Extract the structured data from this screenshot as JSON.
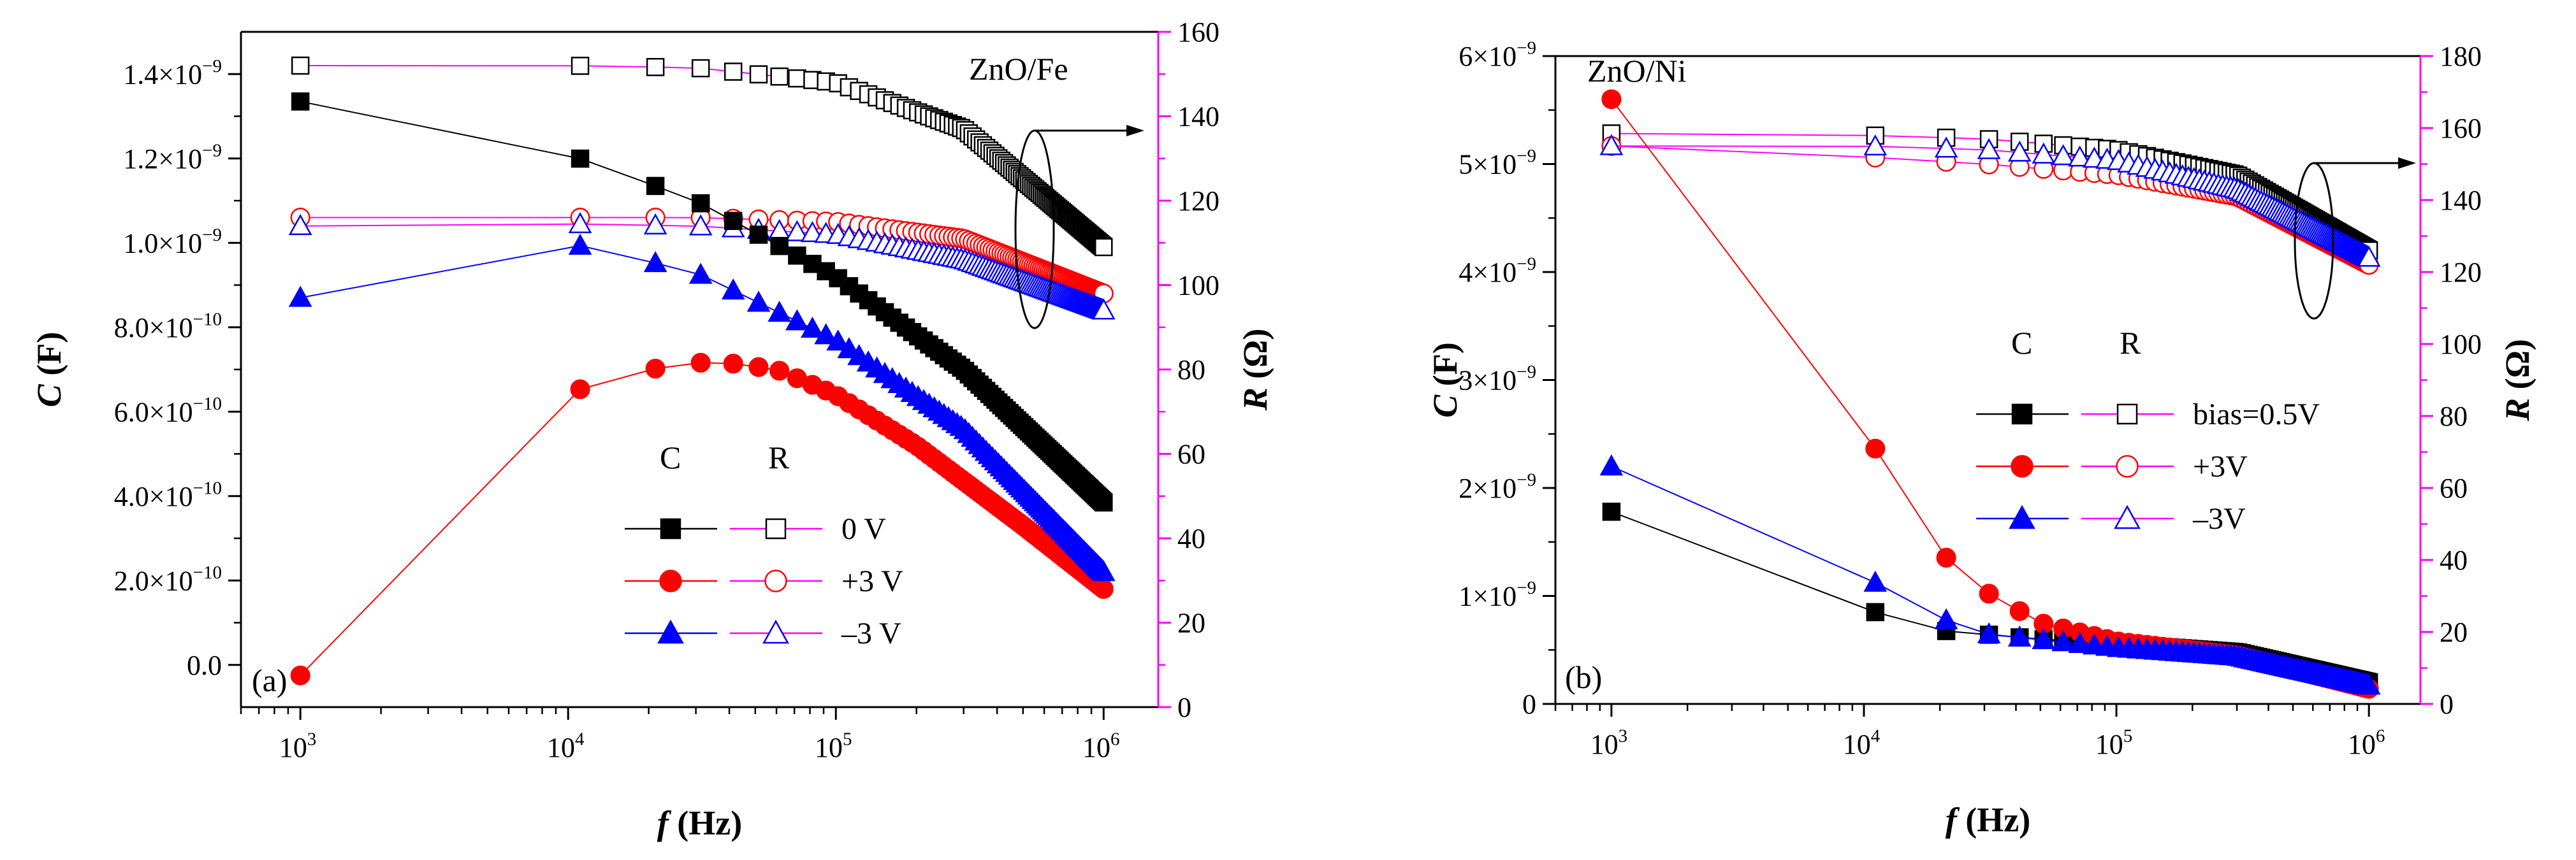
{
  "chart_data": [
    {
      "type": "scatter",
      "panel_label": "(a)",
      "sample_label": "ZnO/Fe",
      "x_scale": "log",
      "xlim": [
        600,
        1600000
      ],
      "xlabel": {
        "italic": "f",
        "rest": " (Hz)"
      },
      "x_ticks": [
        {
          "value": 1000,
          "base": "10",
          "exp": "3"
        },
        {
          "value": 10000,
          "base": "10",
          "exp": "4"
        },
        {
          "value": 100000,
          "base": "10",
          "exp": "5"
        },
        {
          "value": 1000000,
          "base": "10",
          "exp": "6"
        }
      ],
      "ylim_left": [
        -1e-10,
        1.5e-09
      ],
      "ylabel_left": {
        "italic": "C",
        "rest": " (F)"
      },
      "y_ticks_left": [
        {
          "value": 0,
          "label": "0.0"
        },
        {
          "value": 2e-10,
          "label": "2.0×10",
          "exp": "−10"
        },
        {
          "value": 4e-10,
          "label": "4.0×10",
          "exp": "−10"
        },
        {
          "value": 6e-10,
          "label": "6.0×10",
          "exp": "−10"
        },
        {
          "value": 8e-10,
          "label": "8.0×10",
          "exp": "−10"
        },
        {
          "value": 1e-09,
          "label": "1.0×10",
          "exp": "−9"
        },
        {
          "value": 1.2e-09,
          "label": "1.2×10",
          "exp": "−9"
        },
        {
          "value": 1.4e-09,
          "label": "1.4×10",
          "exp": "−9"
        }
      ],
      "ylim_right": [
        0,
        160
      ],
      "ylabel_right": {
        "italic": "R",
        "rest": " (Ω)"
      },
      "y_ticks_right": [
        0,
        20,
        40,
        60,
        80,
        100,
        120,
        140,
        160
      ],
      "legend": {
        "position": "lower-right",
        "header_c": "C",
        "header_r": "R",
        "entries": [
          "0 V",
          "+3 V",
          "–3 V"
        ]
      },
      "arrow_direction": "right",
      "c_series": [
        {
          "color": "#000000",
          "marker": "square",
          "fstart": 1000,
          "fend": 1000000,
          "n": 100,
          "pts": [
            [
              1000,
              1.335e-09
            ],
            [
              3000,
              1.29e-09
            ],
            [
              5000,
              1.26e-09
            ],
            [
              10000,
              1.21e-09
            ],
            [
              30000,
              1.1e-09
            ],
            [
              100000,
              9.2e-10
            ],
            [
              300000,
              7e-10
            ],
            [
              1000000,
              3.85e-10
            ]
          ]
        },
        {
          "color": "#ff0000",
          "marker": "circle",
          "fstart": 1000,
          "fend": 1000000,
          "n": 100,
          "pts": [
            [
              1000,
              -2.5e-11
            ],
            [
              3000,
              4.4e-10
            ],
            [
              5000,
              5.5e-10
            ],
            [
              7000,
              5.9e-10
            ],
            [
              10000,
              6.45e-10
            ],
            [
              20000,
              7e-10
            ],
            [
              35000,
              7.2e-10
            ],
            [
              60000,
              7e-10
            ],
            [
              100000,
              6.4e-10
            ],
            [
              200000,
              5.2e-10
            ],
            [
              500000,
              3.3e-10
            ],
            [
              1000000,
              1.8e-10
            ]
          ]
        },
        {
          "color": "#0000ff",
          "marker": "triangle",
          "fstart": 1000,
          "fend": 1000000,
          "n": 100,
          "pts": [
            [
              1000,
              8.7e-10
            ],
            [
              3000,
              1e-09
            ],
            [
              5000,
              1.015e-09
            ],
            [
              7000,
              1.015e-09
            ],
            [
              10000,
              1e-09
            ],
            [
              30000,
              9.3e-10
            ],
            [
              100000,
              7.7e-10
            ],
            [
              300000,
              5.6e-10
            ],
            [
              1000000,
              2.2e-10
            ]
          ]
        }
      ],
      "r_series": [
        {
          "color": "#000000",
          "marker": "square",
          "fstart": 1000,
          "fend": 1000000,
          "n": 100,
          "pts": [
            [
              1000,
              152
            ],
            [
              10000,
              152
            ],
            [
              30000,
              151.5
            ],
            [
              100000,
              148
            ],
            [
              300000,
              137
            ],
            [
              1000000,
              109
            ]
          ]
        },
        {
          "color": "#ff0000",
          "marker": "circle",
          "fstart": 1000,
          "fend": 1000000,
          "n": 100,
          "pts": [
            [
              1000,
              116
            ],
            [
              10000,
              116
            ],
            [
              30000,
              116
            ],
            [
              100000,
              115
            ],
            [
              300000,
              111
            ],
            [
              1000000,
              98
            ]
          ]
        },
        {
          "color": "#0000ff",
          "marker": "triangle",
          "fstart": 1000,
          "fend": 1000000,
          "n": 100,
          "pts": [
            [
              1000,
              114
            ],
            [
              10000,
              114.5
            ],
            [
              30000,
              114
            ],
            [
              100000,
              112
            ],
            [
              300000,
              106
            ],
            [
              1000000,
              94
            ]
          ]
        }
      ]
    },
    {
      "type": "scatter",
      "panel_label": "(b)",
      "sample_label": "ZnO/Ni",
      "x_scale": "log",
      "xlim": [
        600,
        1600000
      ],
      "xlabel": {
        "italic": "f",
        "rest": " (Hz)"
      },
      "x_ticks": [
        {
          "value": 1000,
          "base": "10",
          "exp": "3"
        },
        {
          "value": 10000,
          "base": "10",
          "exp": "4"
        },
        {
          "value": 100000,
          "base": "10",
          "exp": "5"
        },
        {
          "value": 1000000,
          "base": "10",
          "exp": "6"
        }
      ],
      "ylim_left": [
        0,
        6e-09
      ],
      "ylabel_left": {
        "italic": "C",
        "rest": " (F)"
      },
      "y_ticks_left": [
        {
          "value": 0,
          "label": "0"
        },
        {
          "value": 1e-09,
          "label": "1×10",
          "exp": "−9"
        },
        {
          "value": 2e-09,
          "label": "2×10",
          "exp": "−9"
        },
        {
          "value": 3e-09,
          "label": "3×10",
          "exp": "−9"
        },
        {
          "value": 4e-09,
          "label": "4×10",
          "exp": "−9"
        },
        {
          "value": 5e-09,
          "label": "5×10",
          "exp": "−9"
        },
        {
          "value": 6e-09,
          "label": "6×10",
          "exp": "−9"
        }
      ],
      "ylim_right": [
        0,
        180
      ],
      "ylabel_right": {
        "italic": "R",
        "rest": " (Ω)"
      },
      "y_ticks_right": [
        0,
        20,
        40,
        60,
        80,
        100,
        120,
        140,
        160,
        180
      ],
      "legend": {
        "position": "center-right",
        "header_c": "C",
        "header_r": "R",
        "entries": [
          "bias=0.5V",
          "+3V",
          "–3V"
        ]
      },
      "arrow_direction": "right",
      "c_series": [
        {
          "color": "#000000",
          "marker": "square",
          "fstart": 1000,
          "fend": 1000000,
          "n": 100,
          "pts": [
            [
              1000,
              1.78e-09
            ],
            [
              3000,
              1.53e-09
            ],
            [
              5000,
              1.27e-09
            ],
            [
              7000,
              1.08e-09
            ],
            [
              10000,
              8.8e-10
            ],
            [
              20000,
              6.8e-10
            ],
            [
              50000,
              6e-10
            ],
            [
              100000,
              5.6e-10
            ],
            [
              300000,
              4.8e-10
            ],
            [
              1000000,
              2e-10
            ]
          ]
        },
        {
          "color": "#ff0000",
          "marker": "circle",
          "fstart": 1000,
          "fend": 1000000,
          "n": 100,
          "pts": [
            [
              1000,
              5.6e-09
            ],
            [
              3000,
              4.93e-09
            ],
            [
              5000,
              4.08e-09
            ],
            [
              7000,
              3.35e-09
            ],
            [
              9000,
              2.8e-09
            ],
            [
              12000,
              2.2e-09
            ],
            [
              16000,
              1.7e-09
            ],
            [
              25000,
              1.15e-09
            ],
            [
              50000,
              7.5e-10
            ],
            [
              100000,
              5.8e-10
            ],
            [
              300000,
              4.5e-10
            ],
            [
              1000000,
              1.4e-10
            ]
          ]
        },
        {
          "color": "#0000ff",
          "marker": "triangle",
          "fstart": 1000,
          "fend": 1000000,
          "n": 100,
          "pts": [
            [
              1000,
              2.2e-09
            ],
            [
              3000,
              1.95e-09
            ],
            [
              5000,
              1.72e-09
            ],
            [
              7000,
              1.48e-09
            ],
            [
              10000,
              1.2e-09
            ],
            [
              15000,
              9e-10
            ],
            [
              30000,
              6.5e-10
            ],
            [
              100000,
              5.2e-10
            ],
            [
              300000,
              4.4e-10
            ],
            [
              1000000,
              1.7e-10
            ]
          ]
        }
      ],
      "r_series": [
        {
          "color": "#000000",
          "marker": "square",
          "fstart": 1000,
          "fend": 1000000,
          "n": 100,
          "pts": [
            [
              1000,
              158.5
            ],
            [
              10000,
              158
            ],
            [
              30000,
              157
            ],
            [
              100000,
              154
            ],
            [
              300000,
              147
            ],
            [
              1000000,
              126
            ]
          ]
        },
        {
          "color": "#ff0000",
          "marker": "circle",
          "fstart": 1000,
          "fend": 1000000,
          "n": 100,
          "pts": [
            [
              1000,
              155
            ],
            [
              5000,
              154
            ],
            [
              10000,
              152
            ],
            [
              30000,
              150
            ],
            [
              100000,
              147
            ],
            [
              300000,
              141
            ],
            [
              1000000,
              122
            ]
          ]
        },
        {
          "color": "#0000ff",
          "marker": "triangle",
          "fstart": 1000,
          "fend": 1000000,
          "n": 100,
          "pts": [
            [
              1000,
              155
            ],
            [
              10000,
              155
            ],
            [
              30000,
              154
            ],
            [
              100000,
              151
            ],
            [
              300000,
              143
            ],
            [
              1000000,
              124
            ]
          ]
        }
      ]
    }
  ]
}
